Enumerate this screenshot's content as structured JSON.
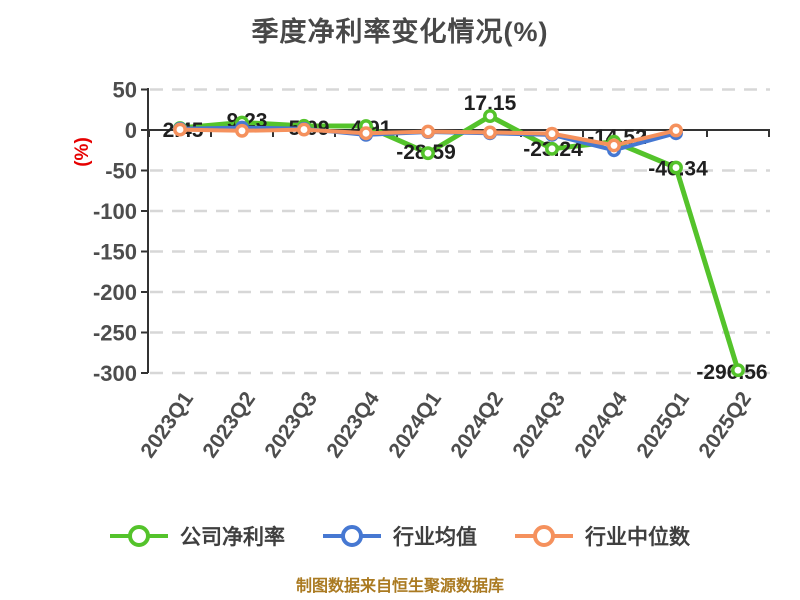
{
  "title": "季度净利率变化情况(%)",
  "footer_note": "制图数据来自恒生聚源数据库",
  "legend": {
    "items": [
      "公司净利率",
      "行业均值",
      "行业中位数"
    ]
  },
  "chart_data": {
    "type": "line",
    "title": "季度净利率变化情况(%)",
    "categories": [
      "2023Q1",
      "2023Q2",
      "2023Q3",
      "2023Q4",
      "2024Q1",
      "2024Q2",
      "2024Q3",
      "2024Q4",
      "2025Q1",
      "2025Q2"
    ],
    "series": [
      {
        "name": "公司净利率",
        "color": "#54c32b",
        "width": 5,
        "values": [
          2.45,
          9.23,
          5.09,
          4.91,
          -28.59,
          17.15,
          -23.24,
          -14.52,
          -46.34,
          -296.56
        ],
        "labels": [
          "2.45",
          "9.23",
          "5.09",
          "4.91",
          "-28.59",
          "17.15",
          "-23.24",
          "-14.52",
          "-46.34",
          "-296.56"
        ]
      },
      {
        "name": "行业均值",
        "color": "#4678d2",
        "width": 4,
        "values": [
          1.5,
          3,
          1.5,
          -6,
          -2.5,
          -4,
          -6,
          -25,
          -4,
          null
        ]
      },
      {
        "name": "行业中位数",
        "color": "#f5915d",
        "width": 4,
        "values": [
          0.5,
          -1,
          0.5,
          -4,
          -2,
          -3,
          -4.5,
          -19,
          -0.5,
          null
        ]
      }
    ],
    "xlabel": "",
    "ylabel": "(%)",
    "ylim": [
      -300,
      50
    ],
    "yticks": [
      50,
      0,
      -50,
      -100,
      -150,
      -200,
      -250,
      -300
    ],
    "grid": "horizontal-dashed",
    "legend_position": "bottom",
    "x_label_rotation": 55,
    "colors": {
      "axis": "#333333",
      "grid": "#d7d7d7",
      "tick_text": "#4d4d4d",
      "data_label": "#1f1f1f",
      "y_axis_title": "#e60000",
      "title_text": "#484848",
      "footer_text": "#aa7a21"
    }
  }
}
